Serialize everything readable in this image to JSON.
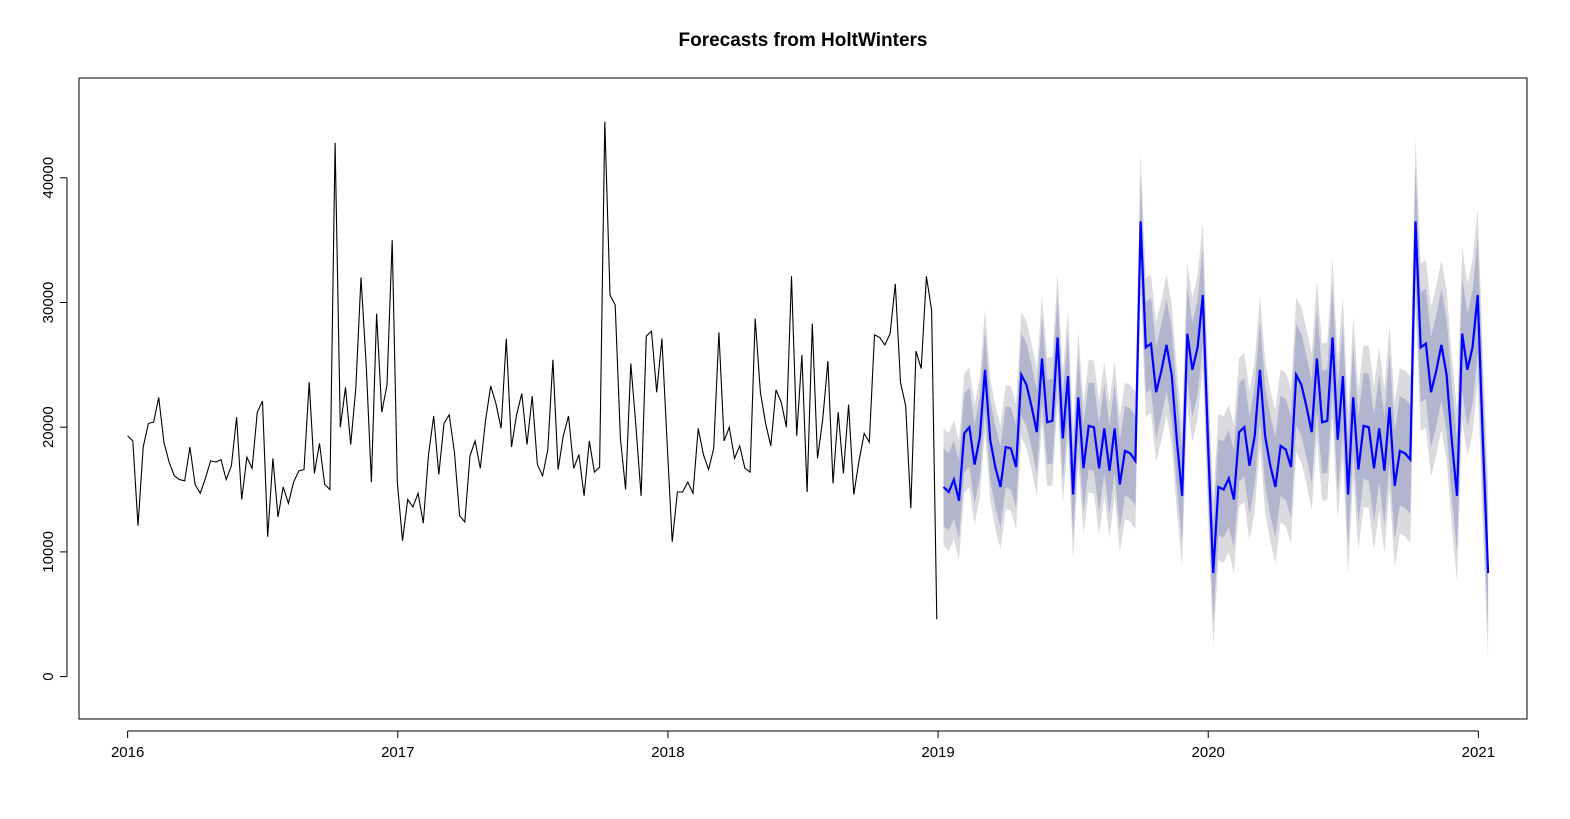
{
  "chart_data": {
    "type": "line",
    "title": "Forecasts from HoltWinters",
    "xlabel": "",
    "ylabel": "",
    "xlim": [
      2015.82,
      2021.18
    ],
    "ylim": [
      -3400,
      48000
    ],
    "x_ticks": [
      2016,
      2017,
      2018,
      2019,
      2020,
      2021
    ],
    "x_tick_labels": [
      "2016",
      "2017",
      "2018",
      "2019",
      "2020",
      "2021"
    ],
    "y_ticks": [
      0,
      10000,
      20000,
      30000,
      40000
    ],
    "y_tick_labels": [
      "0",
      "10000",
      "20000",
      "30000",
      "40000"
    ],
    "grid": false,
    "colors": {
      "observed": "#000000",
      "forecast": "#0000ff",
      "pi80": "#b1b5ce",
      "pi95": "#dbdbdf"
    },
    "series": [
      {
        "role": "observed",
        "x_start": 2016.0,
        "step": 0.0192,
        "values": [
          19300,
          18900,
          12100,
          18400,
          20300,
          20400,
          22400,
          18800,
          17200,
          16100,
          15800,
          15700,
          18400,
          15400,
          14700,
          15900,
          17300,
          17200,
          17400,
          15800,
          16900,
          20800,
          14200,
          17600,
          16700,
          21200,
          22100,
          11200,
          17500,
          12800,
          15200,
          13900,
          15600,
          16500,
          16600,
          23600,
          16300,
          18700,
          15400,
          15000,
          42800,
          20000,
          23200,
          18600,
          23100,
          32000,
          25000,
          15600,
          29100,
          21200,
          23400,
          35000,
          15600,
          10900,
          14200,
          13600,
          14700,
          12300,
          17800,
          20900,
          16200,
          20300,
          21000,
          18000,
          12900,
          12400,
          17700,
          18900,
          16700,
          20500,
          23300,
          21900,
          19900,
          27100,
          18400,
          21000,
          22700,
          18600,
          22500,
          17000,
          16100,
          18200,
          25400,
          16600,
          19300,
          20900,
          16700,
          17800,
          14500,
          18900,
          16400,
          16800,
          44500,
          30600,
          29800,
          19100,
          15000,
          25100,
          20100,
          14500,
          27300,
          27700,
          22800,
          27100,
          18800,
          10800,
          14800,
          14800,
          15600,
          14700,
          19900,
          17800,
          16600,
          18300,
          27600,
          18900,
          20000,
          17500,
          18500,
          16700,
          16400,
          28700,
          22800,
          20300,
          18500,
          23000,
          22000,
          20000,
          32100,
          19300,
          25800,
          14800,
          28300,
          17500,
          20600,
          25300,
          15500,
          21200,
          16300,
          21800,
          14600,
          17300,
          19500,
          18800,
          27400,
          27200,
          26600,
          27500,
          31500,
          23600,
          21700,
          13500,
          26100,
          24700,
          32100,
          29400,
          4600
        ]
      },
      {
        "role": "forecast",
        "x_start": 2019.02,
        "step": 0.0192,
        "values": [
          15200,
          14800,
          15800,
          14100,
          19500,
          20000,
          17000,
          19200,
          24600,
          19000,
          16800,
          15200,
          18400,
          18300,
          16800,
          24200,
          23400,
          21600,
          19600,
          25500,
          20400,
          20500,
          27200,
          19100,
          24100,
          14600,
          22400,
          16700,
          20100,
          20000,
          16700,
          19900,
          16500,
          19900,
          15400,
          18100,
          17900,
          17300,
          36500,
          26400,
          26700,
          22800,
          24500,
          26600,
          24200,
          18900,
          14500,
          27500,
          24600,
          26400,
          30600,
          18800,
          8300,
          15200,
          15000,
          15900,
          14200,
          19600,
          20000,
          16900,
          19300,
          24600,
          19300,
          16900,
          15200,
          18500,
          18200,
          16800,
          24200,
          23400,
          21600,
          19600,
          25500,
          20400,
          20500,
          27200,
          19000,
          24100,
          14600,
          22400,
          16600,
          20100,
          20000,
          16700,
          19900,
          16500,
          21600,
          15300,
          18100,
          17900,
          17400,
          36500,
          26400,
          26700,
          22800,
          24500,
          26600,
          24200,
          18900,
          14500,
          27500,
          24600,
          26400,
          30600,
          18800,
          8300
        ],
        "pi80_halfwidth": [
          3100,
          4600
        ],
        "pi95_halfwidth": [
          4700,
          7000
        ]
      }
    ]
  }
}
